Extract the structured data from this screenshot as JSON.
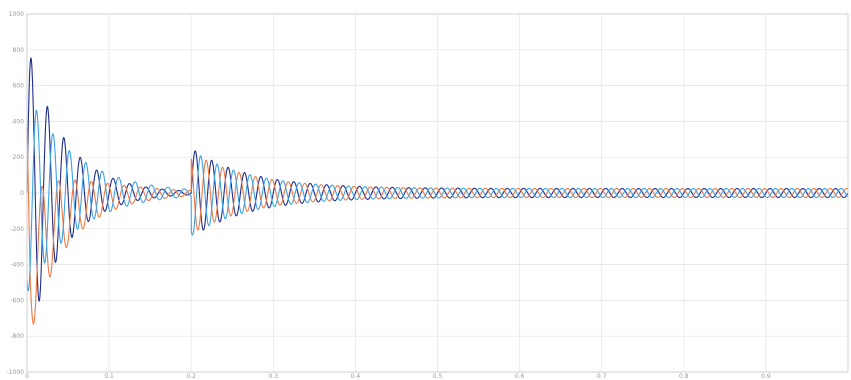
{
  "chart_data": {
    "type": "line",
    "title": "",
    "xlabel": "",
    "ylabel": "",
    "xlim": [
      0,
      1
    ],
    "ylim": [
      -1000,
      1000
    ],
    "grid": true,
    "x_ticks": [
      0,
      0.1,
      0.2,
      0.3,
      0.4,
      0.5,
      0.6,
      0.7,
      0.8,
      0.9
    ],
    "x_tick_labels": [
      "0",
      "0.1",
      "0.2",
      "0.3",
      "0.4",
      "0.5",
      "0.6",
      "0.7",
      "0.8",
      "0.9"
    ],
    "y_ticks": [
      -1000,
      -800,
      -600,
      -400,
      -200,
      0,
      200,
      400,
      600,
      800,
      1000
    ],
    "y_tick_labels": [
      "-1000",
      "-800",
      "-600",
      "-400",
      "-200",
      "0",
      "200",
      "400",
      "600",
      "800",
      "1000"
    ],
    "frequency_hz": 50,
    "series": [
      {
        "color": "#1f2d8c",
        "phase_deg": 0,
        "segments": [
          {
            "t_start": 0,
            "t_end": 0.2,
            "amplitude": 840,
            "decay_tau": 0.045,
            "dc_offset": 0,
            "dc_tau": 0.05
          },
          {
            "t_start": 0.2,
            "t_end": 1,
            "amplitude": 250,
            "decay_tau": 0.07,
            "steady_amplitude": 25
          }
        ]
      },
      {
        "color": "#f07a45",
        "phase_deg": 120,
        "segments": [
          {
            "t_start": 0,
            "t_end": 0.2,
            "amplitude": 420,
            "decay_tau": 0.06,
            "dc_offset": -460,
            "dc_tau": 0.035
          },
          {
            "t_start": 0.2,
            "t_end": 1,
            "amplitude": 230,
            "decay_tau": 0.07,
            "steady_amplitude": 25
          }
        ]
      },
      {
        "color": "#3aa3e8",
        "phase_deg": 240,
        "segments": [
          {
            "t_start": 0,
            "t_end": 0.2,
            "amplitude": 560,
            "decay_tau": 0.06,
            "dc_offset": 0,
            "dc_tau": 0.05
          },
          {
            "t_start": 0.2,
            "t_end": 1,
            "amplitude": 240,
            "decay_tau": 0.07,
            "steady_amplitude": 25
          }
        ]
      }
    ]
  }
}
